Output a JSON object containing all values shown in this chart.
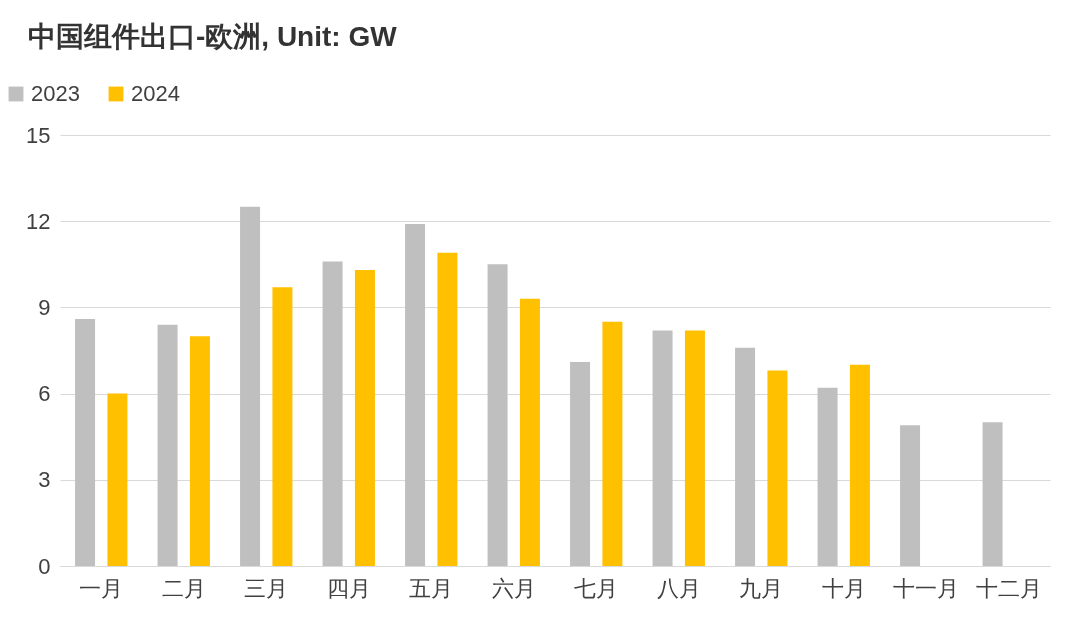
{
  "chart_data": {
    "type": "bar",
    "title": "中国组件出口-欧洲, Unit: GW",
    "categories": [
      "一月",
      "二月",
      "三月",
      "四月",
      "五月",
      "六月",
      "七月",
      "八月",
      "九月",
      "十月",
      "十一月",
      "十二月"
    ],
    "series": [
      {
        "name": "2023",
        "color": "#bfbfbf",
        "values": [
          8.6,
          8.4,
          12.5,
          10.6,
          11.9,
          10.5,
          7.1,
          8.2,
          7.6,
          6.2,
          4.9,
          5.0
        ]
      },
      {
        "name": "2024",
        "color": "#ffc000",
        "values": [
          6.0,
          8.0,
          9.7,
          10.3,
          10.9,
          9.3,
          8.5,
          8.2,
          6.8,
          7.0,
          null,
          null
        ]
      }
    ],
    "ylim": [
      0,
      15
    ],
    "yticks": [
      0,
      3,
      6,
      9,
      12,
      15
    ],
    "grid": "y",
    "legend": "top left"
  }
}
